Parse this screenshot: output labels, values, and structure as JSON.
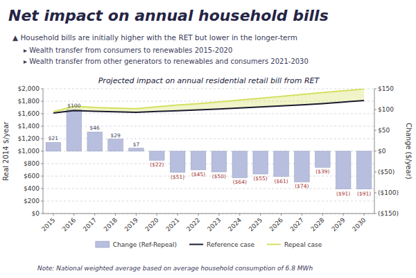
{
  "slide_title": "Net impact on annual household bills",
  "bullets": [
    "▲  Household bills are initially higher with the RET but lower in the longer-term",
    "▸  Wealth transfer from consumers to renewables 2015-2020",
    "▸  Wealth transfer from other generators to renewables and consumers 2021-2030"
  ],
  "note": "Note: National weighted average based on average household consumption of 6.8 MWh",
  "chart_data": {
    "type": "bar",
    "title": "Projected impact on annual residential retail bill from RET",
    "categories": [
      2015,
      2016,
      2017,
      2018,
      2019,
      2020,
      2021,
      2022,
      2023,
      2024,
      2025,
      2026,
      2027,
      2028,
      2029,
      2030
    ],
    "series": [
      {
        "name": "Change (Ref-Repeal)",
        "type": "bar",
        "axis": "y2",
        "color": "#b8bede",
        "values": [
          21,
          100,
          46,
          29,
          7,
          -22,
          -51,
          -45,
          -50,
          -64,
          -55,
          -61,
          -74,
          -39,
          -91,
          -91
        ],
        "value_labels": [
          "$21",
          "$100",
          "$46",
          "$29",
          "$7",
          "($22)",
          "($51)",
          "($45)",
          "($50)",
          "($64)",
          "($55)",
          "($61)",
          "($74)",
          "($39)",
          "($91)",
          "($91)"
        ]
      },
      {
        "name": "Reference case",
        "type": "line",
        "color": "#1a1a2e",
        "values": [
          1610,
          1650,
          1638,
          1630,
          1622,
          1635,
          1648,
          1662,
          1676,
          1692,
          1708,
          1724,
          1742,
          1762,
          1786,
          1812
        ]
      },
      {
        "name": "Repeal case",
        "type": "line",
        "color": "#d4e060",
        "values": [
          1630,
          1720,
          1700,
          1690,
          1680,
          1710,
          1740,
          1760,
          1790,
          1820,
          1848,
          1878,
          1908,
          1938,
          1966,
          1996
        ]
      }
    ],
    "ylabel": "Real 2014 $/year",
    "y2label": "Change ($/year)",
    "ylim": [
      0,
      2000
    ],
    "yticks": [
      {
        "value": 0,
        "label": "$0"
      },
      {
        "value": 200,
        "label": "$200"
      },
      {
        "value": 400,
        "label": "$400"
      },
      {
        "value": 600,
        "label": "$600"
      },
      {
        "value": 800,
        "label": "$800"
      },
      {
        "value": 1000,
        "label": "$1,000"
      },
      {
        "value": 1200,
        "label": "$1,200"
      },
      {
        "value": 1400,
        "label": "$1,400"
      },
      {
        "value": 1600,
        "label": "$1,600"
      },
      {
        "value": 1800,
        "label": "$1,800"
      },
      {
        "value": 2000,
        "label": "$2,000"
      }
    ],
    "y2lim": [
      -150,
      150
    ],
    "y2ticks": [
      {
        "value": -150,
        "label": "($150)"
      },
      {
        "value": -100,
        "label": "($100)"
      },
      {
        "value": -50,
        "label": "($50)"
      },
      {
        "value": 0,
        "label": "$0"
      },
      {
        "value": 50,
        "label": "$50"
      },
      {
        "value": 100,
        "label": "$100"
      },
      {
        "value": 150,
        "label": "$150"
      }
    ],
    "grid": true,
    "legend": "bottom",
    "data_labels": true
  }
}
